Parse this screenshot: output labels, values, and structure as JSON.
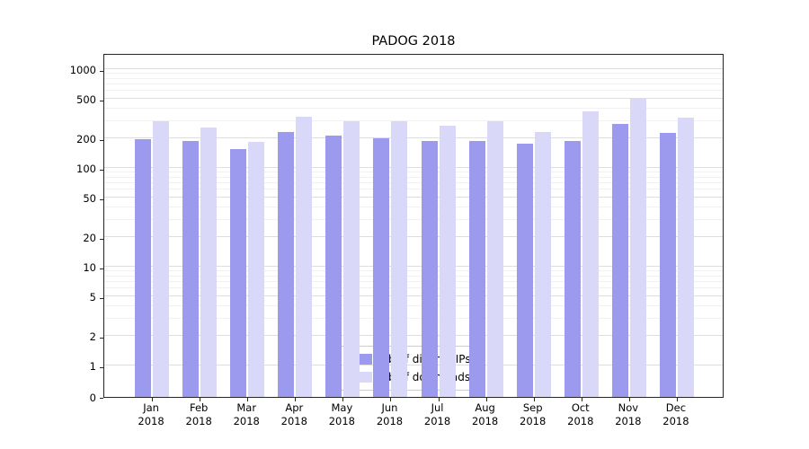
{
  "title": "PADOG 2018",
  "chart_data": {
    "type": "bar",
    "title": "PADOG 2018",
    "categories": [
      "Jan",
      "Feb",
      "Mar",
      "Apr",
      "May",
      "Jun",
      "Jul",
      "Aug",
      "Sep",
      "Oct",
      "Nov",
      "Dec"
    ],
    "year_label": "2018",
    "series": [
      {
        "name": "Nb of distinct IPs",
        "color": "#9b9aee",
        "values": [
          195,
          188,
          155,
          230,
          213,
          198,
          188,
          188,
          178,
          186,
          280,
          228
        ]
      },
      {
        "name": "Nb of downloads",
        "color": "#d9d8f8",
        "values": [
          295,
          255,
          183,
          330,
          295,
          298,
          268,
          295,
          232,
          375,
          500,
          320
        ]
      }
    ],
    "yticks": [
      0,
      1,
      2,
      5,
      10,
      20,
      50,
      100,
      200,
      500,
      1000
    ],
    "yscale": "log",
    "ylim": [
      0,
      1000
    ],
    "grid": true,
    "legend_position": "lower center",
    "xlabel": "",
    "ylabel": ""
  }
}
